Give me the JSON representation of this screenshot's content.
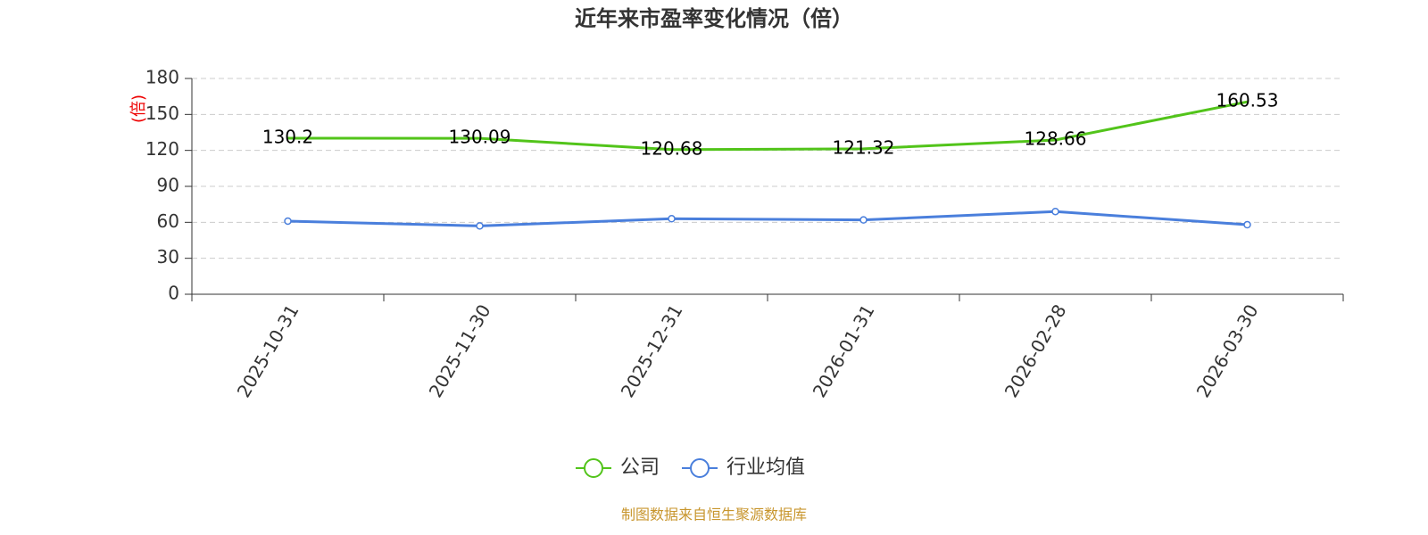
{
  "chart_data": {
    "type": "line",
    "title": "近年来市盈率变化情况（倍）",
    "y_label": "(倍)",
    "categories": [
      "2025-10-31",
      "2025-11-30",
      "2025-12-31",
      "2026-01-31",
      "2026-02-28",
      "2026-03-30"
    ],
    "series": [
      {
        "name": "公司",
        "color": "#52c41a",
        "values": [
          130.2,
          130.09,
          120.68,
          121.32,
          128.66,
          160.53
        ],
        "markers": false,
        "labels": true
      },
      {
        "name": "行业均值",
        "color": "#4a7fdc",
        "values": [
          61,
          57,
          63,
          62,
          69,
          58
        ],
        "markers": true,
        "labels": false
      }
    ],
    "ylim": [
      0,
      180
    ],
    "yticks": [
      0,
      30,
      60,
      90,
      120,
      150,
      180
    ],
    "grid": true,
    "source": "制图数据来自恒生聚源数据库"
  }
}
